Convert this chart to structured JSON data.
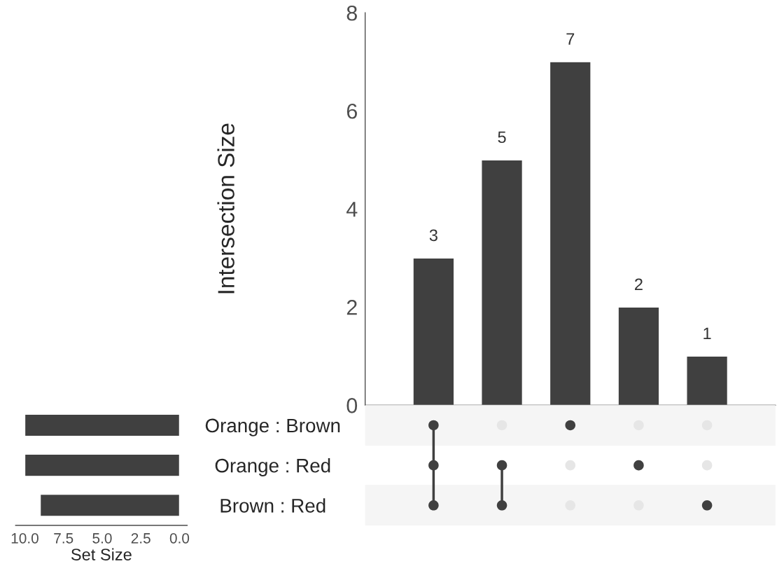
{
  "chart_data": [
    {
      "type": "bar",
      "ylabel": "Intersection Size",
      "categories": [
        null,
        null,
        null,
        null,
        null
      ],
      "values": [
        3,
        5,
        7,
        2,
        1
      ],
      "color": "#404040",
      "ylim": [
        0,
        8
      ],
      "yticks": [
        0,
        2,
        4,
        6,
        8
      ],
      "data_labels": true,
      "tick_labels": "y",
      "grid": false
    },
    {
      "type": "bar",
      "orientation": "horizontal",
      "xlabel": "Set Size",
      "categories": [
        "Orange : Brown",
        "Orange : Red",
        "Brown : Red"
      ],
      "values": [
        10,
        10,
        9
      ],
      "color": "#404040",
      "xlim": [
        10.6,
        -0.5
      ],
      "xticks": [
        {
          "value": 10,
          "label": "10.0"
        },
        {
          "value": 7.5,
          "label": "7.5"
        },
        {
          "value": 5,
          "label": "5.0"
        },
        {
          "value": 2.5,
          "label": "2.5"
        },
        {
          "value": 0,
          "label": "0.0"
        }
      ],
      "grid": false
    },
    {
      "type": "other",
      "cells": [
        [
          true,
          false,
          true,
          false,
          false
        ],
        [
          true,
          true,
          false,
          true,
          false
        ],
        [
          true,
          true,
          false,
          false,
          true
        ]
      ]
    }
  ]
}
